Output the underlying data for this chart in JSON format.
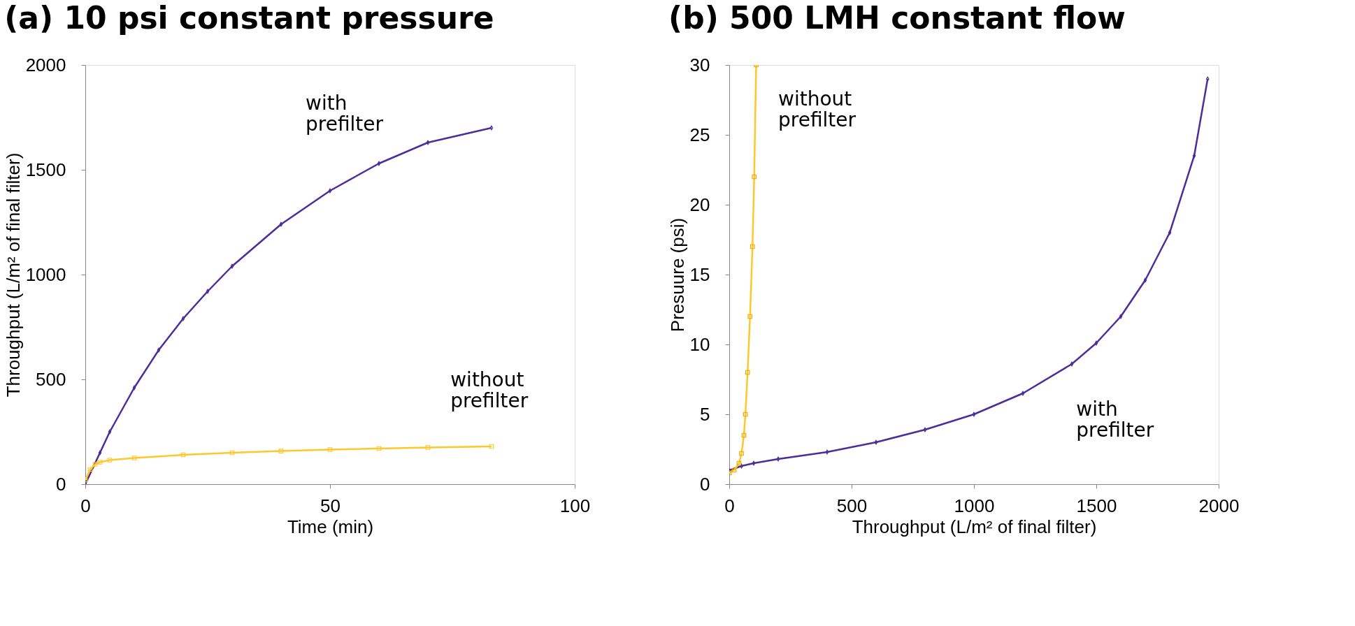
{
  "chart_data": [
    {
      "type": "line",
      "title": "(a) 10 psi constant pressure",
      "xlabel": "Time (min)",
      "ylabel": "Throughput (L/m² of final filter)",
      "xlim": [
        0,
        100
      ],
      "xticks": [
        0,
        50,
        100
      ],
      "ylim": [
        0,
        2000
      ],
      "yticks": [
        0,
        500,
        1000,
        1500,
        2000
      ],
      "grid": false,
      "legend": false,
      "series": [
        {
          "color": "#4b2e9a",
          "marker": "diamond",
          "x": [
            0,
            3,
            5,
            10,
            15,
            20,
            25,
            30,
            40,
            50,
            60,
            70,
            83
          ],
          "values": [
            0,
            150,
            250,
            460,
            640,
            790,
            920,
            1040,
            1240,
            1400,
            1530,
            1630,
            1700
          ]
        },
        {
          "color": "#ffc72c",
          "marker": "square",
          "x": [
            0,
            1,
            2,
            3,
            5,
            10,
            20,
            30,
            40,
            50,
            60,
            70,
            83
          ],
          "values": [
            20,
            70,
            95,
            105,
            115,
            125,
            140,
            150,
            158,
            165,
            170,
            175,
            180
          ]
        }
      ],
      "annotations": [
        "with prefilter",
        "without prefilter"
      ]
    },
    {
      "type": "line",
      "title": "(b) 500 LMH constant flow",
      "xlabel": "Throughput (L/m² of final filter)",
      "ylabel": "Presuure (psi)",
      "xlim": [
        0,
        2000
      ],
      "xticks": [
        0,
        500,
        1000,
        1500,
        2000
      ],
      "ylim": [
        0,
        30
      ],
      "yticks": [
        0,
        5,
        10,
        15,
        20,
        25,
        30
      ],
      "grid": false,
      "legend": false,
      "series": [
        {
          "color": "#4b2e9a",
          "marker": "diamond",
          "x": [
            0,
            50,
            100,
            200,
            400,
            600,
            800,
            1000,
            1200,
            1400,
            1500,
            1600,
            1700,
            1800,
            1900,
            1955
          ],
          "values": [
            1,
            1.3,
            1.5,
            1.8,
            2.3,
            3.0,
            3.9,
            5.0,
            6.5,
            8.6,
            10.1,
            12,
            14.6,
            18,
            23.5,
            29
          ]
        },
        {
          "color": "#e8a800",
          "marker": "square",
          "x": [
            0,
            20,
            40,
            50,
            60,
            66,
            75,
            85,
            95,
            102,
            110
          ],
          "values": [
            0.8,
            1.0,
            1.5,
            2.2,
            3.5,
            5,
            8,
            12,
            17,
            22,
            30
          ]
        }
      ],
      "annotations": [
        "without prefilter",
        "with prefilter"
      ]
    }
  ]
}
